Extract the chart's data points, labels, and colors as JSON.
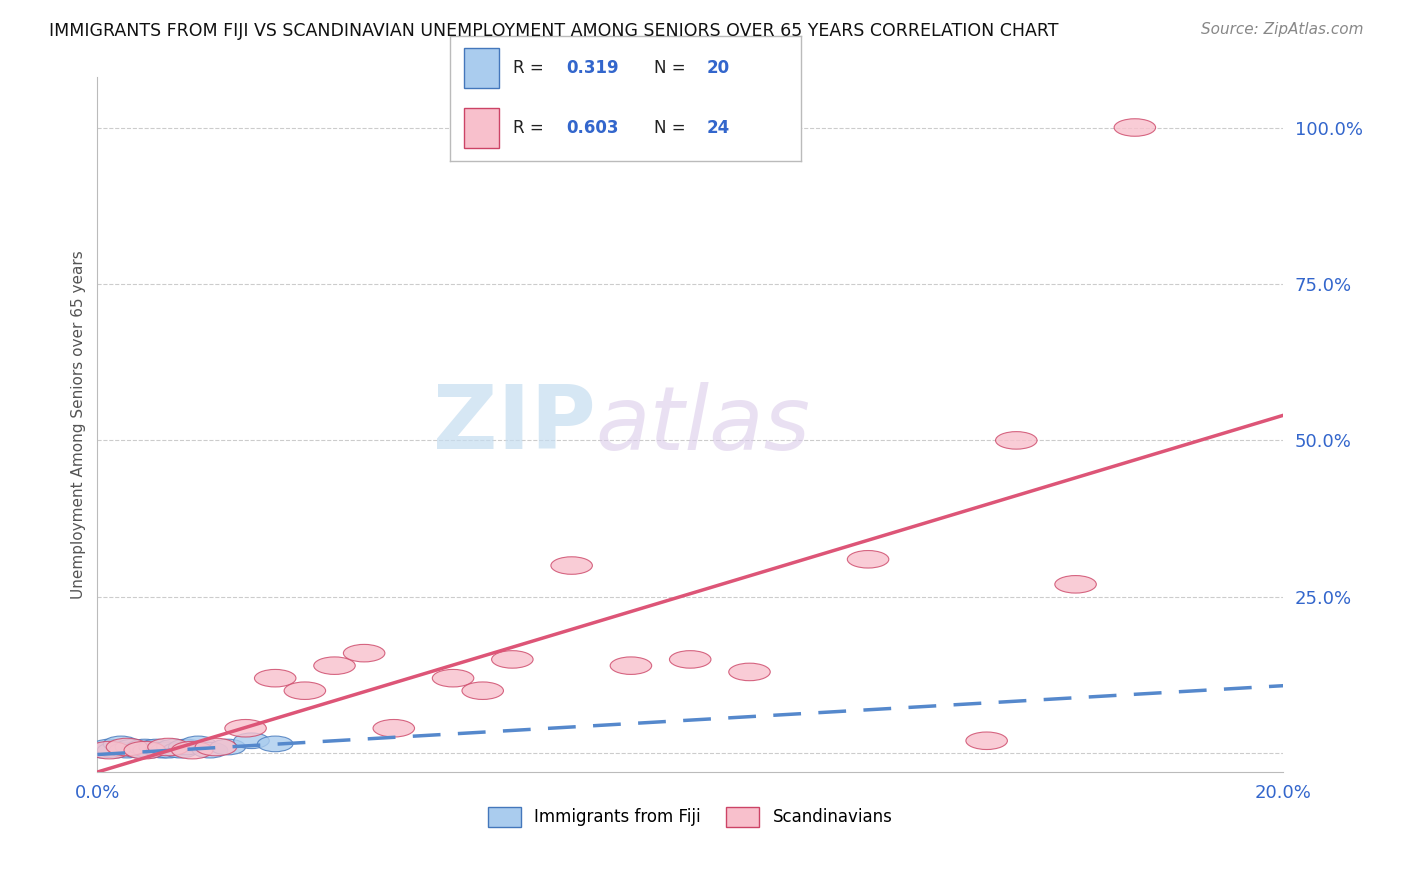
{
  "title": "IMMIGRANTS FROM FIJI VS SCANDINAVIAN UNEMPLOYMENT AMONG SENIORS OVER 65 YEARS CORRELATION CHART",
  "source": "Source: ZipAtlas.com",
  "ylabel": "Unemployment Among Seniors over 65 years",
  "xlim": [
    0.0,
    0.2
  ],
  "ylim": [
    -0.03,
    1.08
  ],
  "xticks": [
    0.0,
    0.05,
    0.1,
    0.15,
    0.2
  ],
  "xtick_labels": [
    "0.0%",
    "",
    "",
    "",
    "20.0%"
  ],
  "ytick_positions": [
    0.0,
    0.25,
    0.5,
    0.75,
    1.0
  ],
  "ytick_labels": [
    "",
    "25.0%",
    "50.0%",
    "75.0%",
    "100.0%"
  ],
  "blue_color": "#aaccee",
  "blue_line_color": "#5588cc",
  "blue_edge_color": "#4477bb",
  "pink_color": "#f8c0cc",
  "pink_line_color": "#dd5577",
  "pink_edge_color": "#cc4466",
  "blue_R": "0.319",
  "blue_N": "20",
  "pink_R": "0.603",
  "pink_N": "24",
  "watermark1": "ZIP",
  "watermark2": "atlas",
  "background_color": "#ffffff",
  "grid_color": "#cccccc",
  "blue_points_x": [
    0.001,
    0.002,
    0.003,
    0.004,
    0.005,
    0.006,
    0.007,
    0.008,
    0.009,
    0.01,
    0.011,
    0.012,
    0.013,
    0.014,
    0.015,
    0.017,
    0.019,
    0.022,
    0.026,
    0.03
  ],
  "blue_points_y": [
    0.005,
    0.01,
    0.005,
    0.015,
    0.005,
    0.01,
    0.005,
    0.01,
    0.005,
    0.01,
    0.005,
    0.005,
    0.01,
    0.005,
    0.01,
    0.015,
    0.005,
    0.01,
    0.02,
    0.015
  ],
  "pink_points_x": [
    0.002,
    0.005,
    0.008,
    0.012,
    0.016,
    0.02,
    0.025,
    0.03,
    0.035,
    0.04,
    0.045,
    0.05,
    0.06,
    0.065,
    0.07,
    0.08,
    0.09,
    0.1,
    0.11,
    0.13,
    0.15,
    0.155,
    0.165,
    0.175
  ],
  "pink_points_y": [
    0.005,
    0.01,
    0.005,
    0.01,
    0.005,
    0.01,
    0.04,
    0.12,
    0.1,
    0.14,
    0.16,
    0.04,
    0.12,
    0.1,
    0.15,
    0.3,
    0.14,
    0.15,
    0.13,
    0.31,
    0.02,
    0.5,
    0.27,
    1.0
  ],
  "blue_slope": 0.55,
  "blue_intercept": -0.002,
  "pink_slope": 2.85,
  "pink_intercept": -0.03
}
